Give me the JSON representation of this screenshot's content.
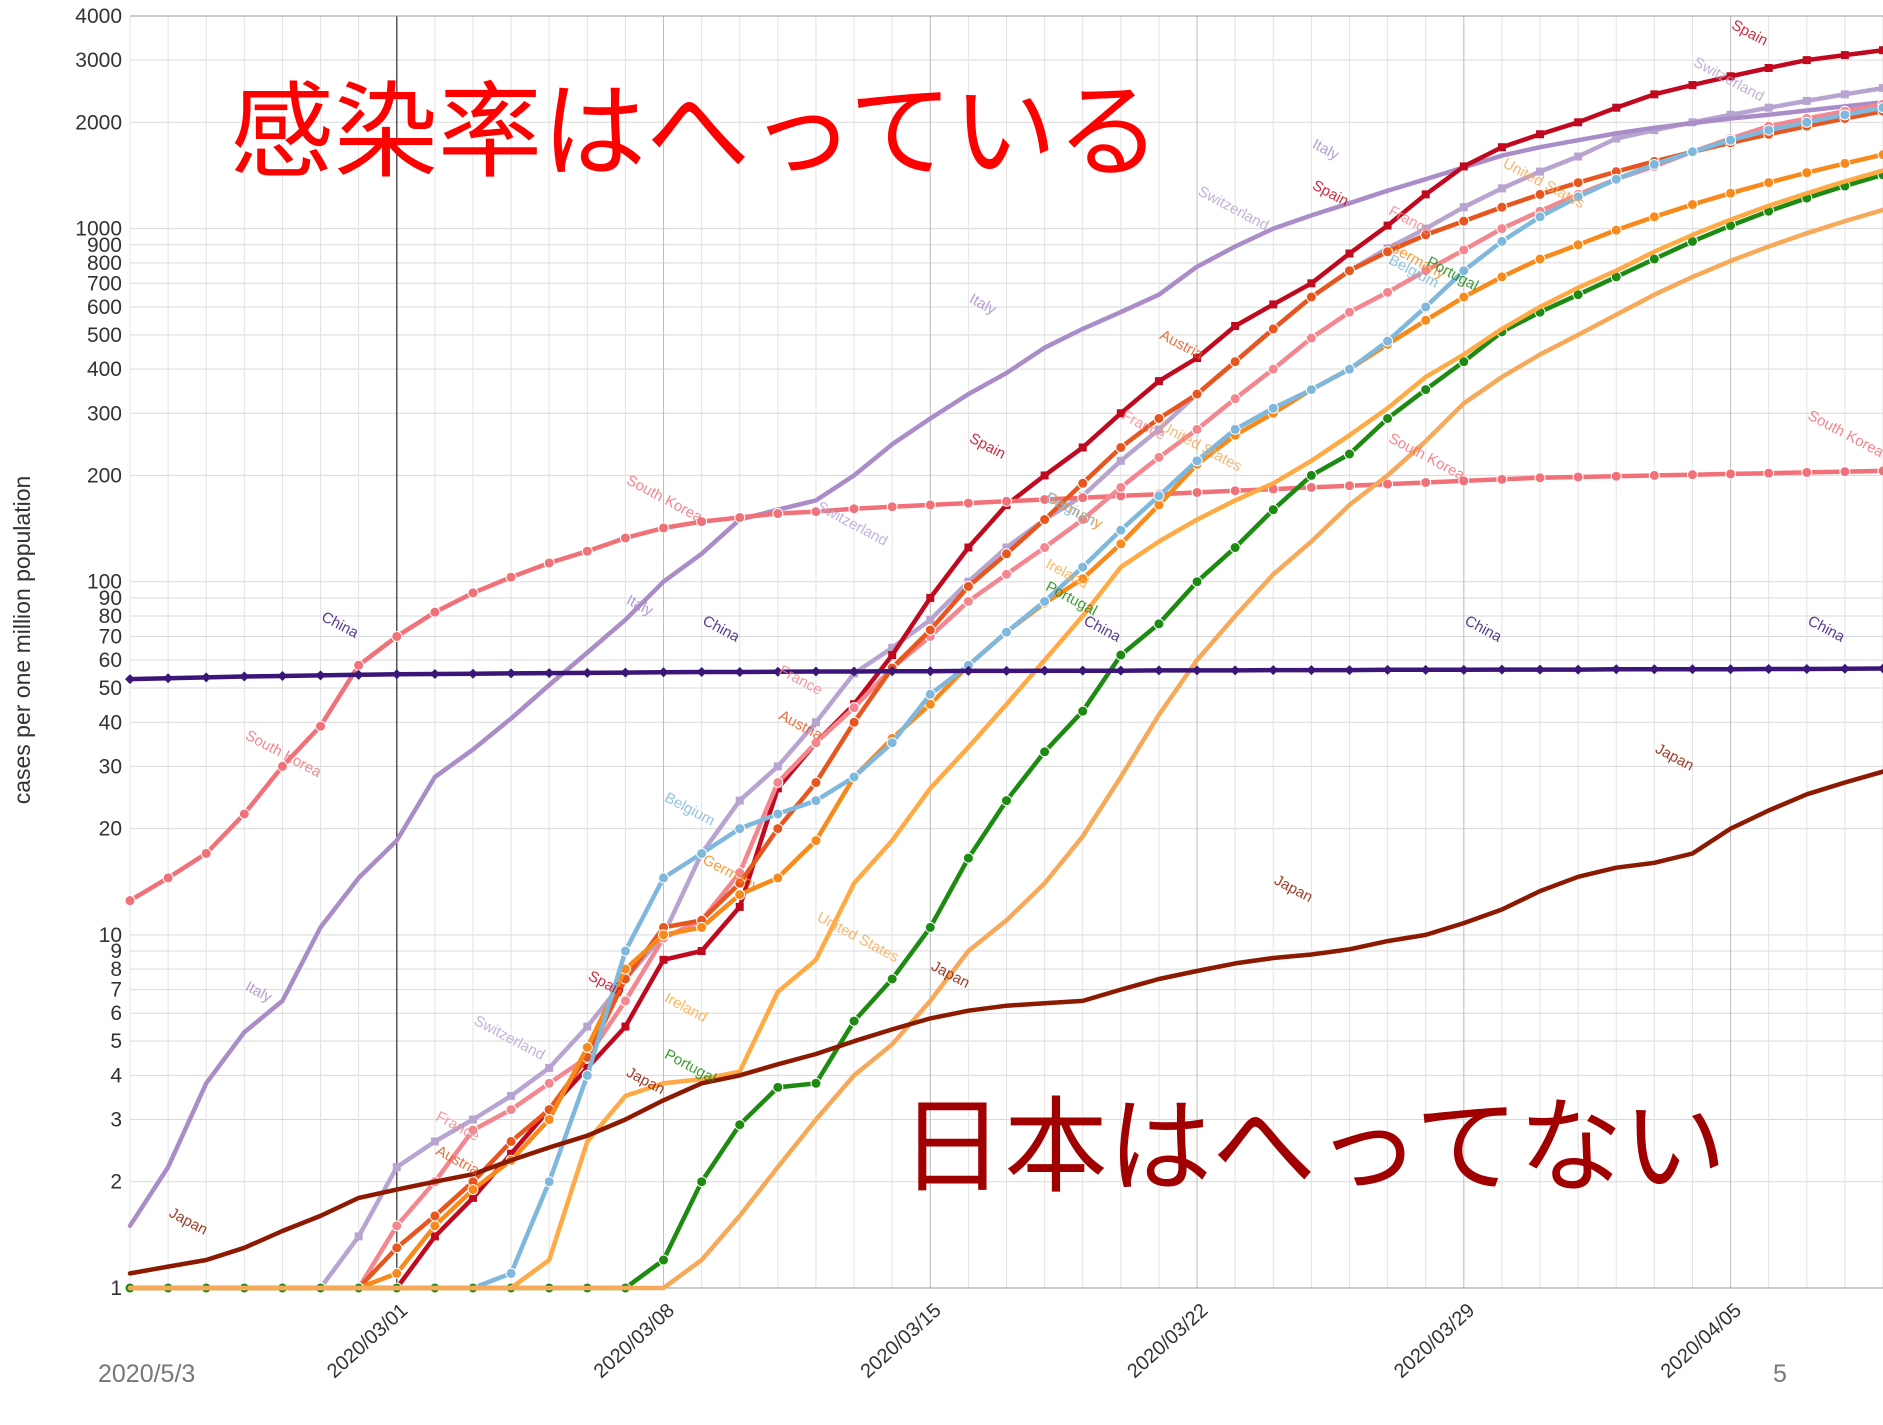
{
  "chart_data": {
    "type": "line",
    "title": "",
    "xlabel": "",
    "ylabel": "cases per one million population",
    "yscale": "log",
    "ylim": [
      1,
      4000
    ],
    "xlim": [
      "2020/02/23",
      "2020/04/09"
    ],
    "grid": true,
    "y_ticks": [
      1,
      2,
      3,
      4,
      5,
      6,
      7,
      8,
      9,
      10,
      20,
      30,
      40,
      50,
      60,
      70,
      80,
      90,
      100,
      200,
      300,
      400,
      500,
      600,
      700,
      800,
      900,
      1000,
      2000,
      3000,
      4000
    ],
    "y_tick_labels": [
      "1",
      "2",
      "3",
      "4",
      "5",
      "6",
      "7",
      "8",
      "9",
      "10",
      "20",
      "30",
      "40",
      "50",
      "60",
      "70",
      "80",
      "90",
      "100",
      "200",
      "300",
      "400",
      "500",
      "600",
      "700",
      "800",
      "900",
      "1000",
      "2000",
      "3000",
      "4000"
    ],
    "x_ticks": [
      "2020/03/01",
      "2020/03/08",
      "2020/03/15",
      "2020/03/22",
      "2020/03/29",
      "2020/04/05"
    ],
    "start_date": "2020/02/23",
    "series": [
      {
        "name": "Switzerland",
        "color": "#b7a4d1",
        "marker": "square",
        "values": [
          1,
          1,
          1,
          1,
          1,
          1,
          1.4,
          2.2,
          2.6,
          3.0,
          3.5,
          4.2,
          5.5,
          7.5,
          10,
          17,
          24,
          30,
          40,
          55,
          65,
          78,
          100,
          125,
          150,
          175,
          220,
          270,
          340,
          420,
          520,
          640,
          760,
          880,
          1000,
          1150,
          1300,
          1450,
          1600,
          1800,
          1900,
          2000,
          2100,
          2200,
          2300,
          2400,
          2500
        ]
      },
      {
        "name": "Italy",
        "color": "#a98cc8",
        "marker": "none",
        "values": [
          1.5,
          2.2,
          3.8,
          5.3,
          6.5,
          10.5,
          14.5,
          18.5,
          28,
          33.5,
          41,
          51,
          63,
          78,
          100,
          120,
          150,
          160,
          170,
          200,
          245,
          290,
          340,
          390,
          460,
          520,
          580,
          650,
          780,
          890,
          1000,
          1090,
          1180,
          1280,
          1380,
          1490,
          1610,
          1700,
          1780,
          1860,
          1930,
          1990,
          2050,
          2100,
          2160,
          2220,
          2280
        ]
      },
      {
        "name": "Spain",
        "color": "#c0091e",
        "marker": "square",
        "values": [
          1,
          1,
          1,
          1,
          1,
          1,
          1,
          1,
          1.4,
          1.8,
          2.4,
          3.2,
          4.2,
          5.5,
          8.5,
          9,
          12,
          26,
          35,
          45,
          62,
          90,
          125,
          165,
          200,
          240,
          300,
          370,
          430,
          530,
          610,
          700,
          850,
          1020,
          1250,
          1500,
          1700,
          1850,
          2000,
          2200,
          2400,
          2550,
          2700,
          2850,
          3000,
          3100,
          3200
        ]
      },
      {
        "name": "South Korea",
        "color": "#f07178",
        "marker": "circle",
        "values": [
          12.5,
          14.5,
          17,
          22,
          30,
          39,
          58,
          70,
          82,
          93,
          103,
          113,
          122,
          133,
          142,
          148,
          152,
          156,
          158,
          161,
          163,
          165,
          167,
          169,
          171,
          173,
          175,
          177,
          179,
          181,
          183,
          185,
          187,
          189,
          191,
          193,
          195,
          197,
          198,
          199,
          200,
          201,
          202,
          203,
          204,
          205,
          206
        ]
      },
      {
        "name": "France",
        "color": "#f4868f",
        "marker": "circle",
        "values": [
          1,
          1,
          1,
          1,
          1,
          1,
          1,
          1.5,
          2.0,
          2.8,
          3.2,
          3.8,
          4.5,
          6.5,
          9.8,
          11,
          15,
          27,
          35,
          44,
          57,
          70,
          88,
          105,
          125,
          150,
          185,
          225,
          270,
          330,
          400,
          490,
          580,
          660,
          760,
          870,
          1000,
          1120,
          1250,
          1380,
          1500,
          1650,
          1800,
          1950,
          2050,
          2150,
          2250
        ]
      },
      {
        "name": "Austria",
        "color": "#e8561f",
        "marker": "circle",
        "values": [
          1,
          1,
          1,
          1,
          1,
          1,
          1,
          1.3,
          1.6,
          2.0,
          2.6,
          3.2,
          4.5,
          7.5,
          10.5,
          11,
          14,
          20,
          27,
          40,
          57,
          73,
          97,
          120,
          150,
          190,
          240,
          290,
          340,
          420,
          520,
          640,
          760,
          860,
          960,
          1050,
          1150,
          1250,
          1350,
          1450,
          1550,
          1650,
          1750,
          1850,
          1950,
          2050,
          2150
        ]
      },
      {
        "name": "Germany",
        "color": "#f78a1b",
        "marker": "circle",
        "values": [
          1,
          1,
          1,
          1,
          1,
          1,
          1,
          1.1,
          1.5,
          1.9,
          2.3,
          3.0,
          4.8,
          8,
          10,
          10.5,
          13,
          14.5,
          18.5,
          28,
          36,
          45,
          58,
          72,
          87,
          102,
          128,
          165,
          215,
          260,
          300,
          350,
          400,
          470,
          550,
          640,
          730,
          820,
          900,
          990,
          1080,
          1170,
          1260,
          1350,
          1440,
          1530,
          1620
        ]
      },
      {
        "name": "Belgium",
        "color": "#7fb8dc",
        "marker": "circle",
        "values": [
          1,
          1,
          1,
          1,
          1,
          1,
          1,
          1,
          1,
          1,
          1.1,
          2.0,
          4.0,
          9,
          14.5,
          17,
          20,
          22,
          24,
          28,
          35,
          48,
          58,
          72,
          88,
          110,
          140,
          175,
          220,
          270,
          310,
          350,
          400,
          480,
          600,
          760,
          920,
          1080,
          1230,
          1380,
          1520,
          1650,
          1780,
          1900,
          2000,
          2100,
          2200
        ]
      },
      {
        "name": "Portugal",
        "color": "#1d8a12",
        "marker": "circle",
        "values": [
          1,
          1,
          1,
          1,
          1,
          1,
          1,
          1,
          1,
          1,
          1,
          1,
          1,
          1,
          1.2,
          2.0,
          2.9,
          3.7,
          3.8,
          5.7,
          7.5,
          10.5,
          16.5,
          24,
          33,
          43,
          62,
          76,
          100,
          125,
          160,
          200,
          230,
          290,
          350,
          420,
          510,
          580,
          650,
          730,
          820,
          920,
          1020,
          1120,
          1220,
          1320,
          1420
        ]
      },
      {
        "name": "Ireland",
        "color": "#ffaa44",
        "marker": "none",
        "values": [
          1,
          1,
          1,
          1,
          1,
          1,
          1,
          1,
          1,
          1,
          1,
          1.2,
          2.6,
          3.5,
          3.8,
          3.9,
          4.1,
          6.9,
          8.5,
          14,
          18.5,
          26,
          34,
          45,
          60,
          80,
          110,
          130,
          150,
          170,
          190,
          220,
          260,
          310,
          380,
          440,
          520,
          600,
          680,
          760,
          860,
          960,
          1060,
          1160,
          1260,
          1360,
          1460
        ]
      },
      {
        "name": "United States",
        "color": "#f7a95a",
        "marker": "none",
        "values": [
          1,
          1,
          1,
          1,
          1,
          1,
          1,
          1,
          1,
          1,
          1,
          1,
          1,
          1,
          1,
          1.2,
          1.6,
          2.2,
          3.0,
          4.0,
          4.9,
          6.5,
          9,
          11,
          14,
          19,
          28,
          42,
          60,
          80,
          105,
          130,
          165,
          200,
          250,
          320,
          380,
          440,
          500,
          570,
          650,
          730,
          810,
          890,
          970,
          1050,
          1130
        ]
      },
      {
        "name": "China",
        "color": "#3b1678",
        "marker": "diamond",
        "values": [
          53,
          53.3,
          53.6,
          53.9,
          54.1,
          54.3,
          54.5,
          54.7,
          54.8,
          54.9,
          55,
          55.1,
          55.2,
          55.3,
          55.4,
          55.5,
          55.5,
          55.6,
          55.7,
          55.7,
          55.8,
          55.8,
          55.9,
          55.9,
          56,
          56,
          56,
          56.1,
          56.1,
          56.1,
          56.2,
          56.2,
          56.2,
          56.3,
          56.3,
          56.3,
          56.4,
          56.4,
          56.4,
          56.5,
          56.5,
          56.5,
          56.5,
          56.6,
          56.6,
          56.7,
          56.8
        ]
      },
      {
        "name": "Japan",
        "color": "#8b1a00",
        "marker": "none",
        "values": [
          1.1,
          1.15,
          1.2,
          1.3,
          1.45,
          1.6,
          1.8,
          1.9,
          2.0,
          2.1,
          2.3,
          2.5,
          2.7,
          3.0,
          3.4,
          3.8,
          4.0,
          4.3,
          4.6,
          5.0,
          5.4,
          5.8,
          6.1,
          6.3,
          6.4,
          6.5,
          7.0,
          7.5,
          7.9,
          8.3,
          8.6,
          8.8,
          9.1,
          9.6,
          10,
          10.8,
          11.8,
          13.3,
          14.6,
          15.5,
          16,
          17,
          20,
          22.5,
          25,
          27,
          29
        ]
      }
    ],
    "label_placements": [
      {
        "series": "Switzerland",
        "day": 41,
        "y": 2900
      },
      {
        "series": "Spain",
        "day": 42,
        "y": 3700
      },
      {
        "series": "Italy",
        "day": 31,
        "y": 1700
      },
      {
        "series": "Italy",
        "day": 22,
        "y": 620
      },
      {
        "series": "Italy",
        "day": 13,
        "y": 87
      },
      {
        "series": "Italy",
        "day": 3,
        "y": 7.0
      },
      {
        "series": "South Korea",
        "day": 13,
        "y": 190
      },
      {
        "series": "South Korea",
        "day": 3,
        "y": 36
      },
      {
        "series": "South Korea",
        "day": 44,
        "y": 290
      },
      {
        "series": "South Korea",
        "day": 33,
        "y": 250
      },
      {
        "series": "China",
        "day": 5,
        "y": 78
      },
      {
        "series": "China",
        "day": 15,
        "y": 76
      },
      {
        "series": "China",
        "day": 35,
        "y": 76
      },
      {
        "series": "China",
        "day": 44,
        "y": 76
      },
      {
        "series": "China",
        "day": 25,
        "y": 76
      },
      {
        "series": "Japan",
        "day": 40,
        "y": 33
      },
      {
        "series": "Japan",
        "day": 30,
        "y": 14
      },
      {
        "series": "Japan",
        "day": 1,
        "y": 1.6
      },
      {
        "series": "Japan",
        "day": 13,
        "y": 4.0
      },
      {
        "series": "Japan",
        "day": 21,
        "y": 8.0
      },
      {
        "series": "Spain",
        "day": 22,
        "y": 250
      },
      {
        "series": "Spain",
        "day": 31,
        "y": 1300
      },
      {
        "series": "Spain",
        "day": 12,
        "y": 7.5
      },
      {
        "series": "France",
        "day": 33,
        "y": 1100
      },
      {
        "series": "France",
        "day": 26,
        "y": 290
      },
      {
        "series": "France",
        "day": 17,
        "y": 55
      },
      {
        "series": "France",
        "day": 8,
        "y": 3.0
      },
      {
        "series": "Austria",
        "day": 27,
        "y": 490
      },
      {
        "series": "Austria",
        "day": 17,
        "y": 41
      },
      {
        "series": "Austria",
        "day": 8,
        "y": 2.4
      },
      {
        "series": "Germany",
        "day": 33,
        "y": 870
      },
      {
        "series": "Germany",
        "day": 24,
        "y": 170
      },
      {
        "series": "Germany",
        "day": 15,
        "y": 16
      },
      {
        "series": "Belgium",
        "day": 33,
        "y": 800
      },
      {
        "series": "Belgium",
        "day": 24,
        "y": 170
      },
      {
        "series": "Belgium",
        "day": 14,
        "y": 24
      },
      {
        "series": "Portugal",
        "day": 34,
        "y": 790
      },
      {
        "series": "Portugal",
        "day": 24,
        "y": 95
      },
      {
        "series": "Portugal",
        "day": 14,
        "y": 4.5
      },
      {
        "series": "Ireland",
        "day": 14,
        "y": 6.5
      },
      {
        "series": "Ireland",
        "day": 24,
        "y": 110
      },
      {
        "series": "United States",
        "day": 36,
        "y": 1500
      },
      {
        "series": "United States",
        "day": 18,
        "y": 11
      },
      {
        "series": "United States",
        "day": 27,
        "y": 270
      },
      {
        "series": "Switzerland",
        "day": 28,
        "y": 1250
      },
      {
        "series": "Switzerland",
        "day": 18,
        "y": 160
      },
      {
        "series": "Switzerland",
        "day": 9,
        "y": 5.6
      }
    ]
  },
  "annotations": {
    "headline": "感染率はへっている",
    "subline": "日本はへってない"
  },
  "footer": {
    "date": "2020/5/3",
    "page": "5"
  }
}
